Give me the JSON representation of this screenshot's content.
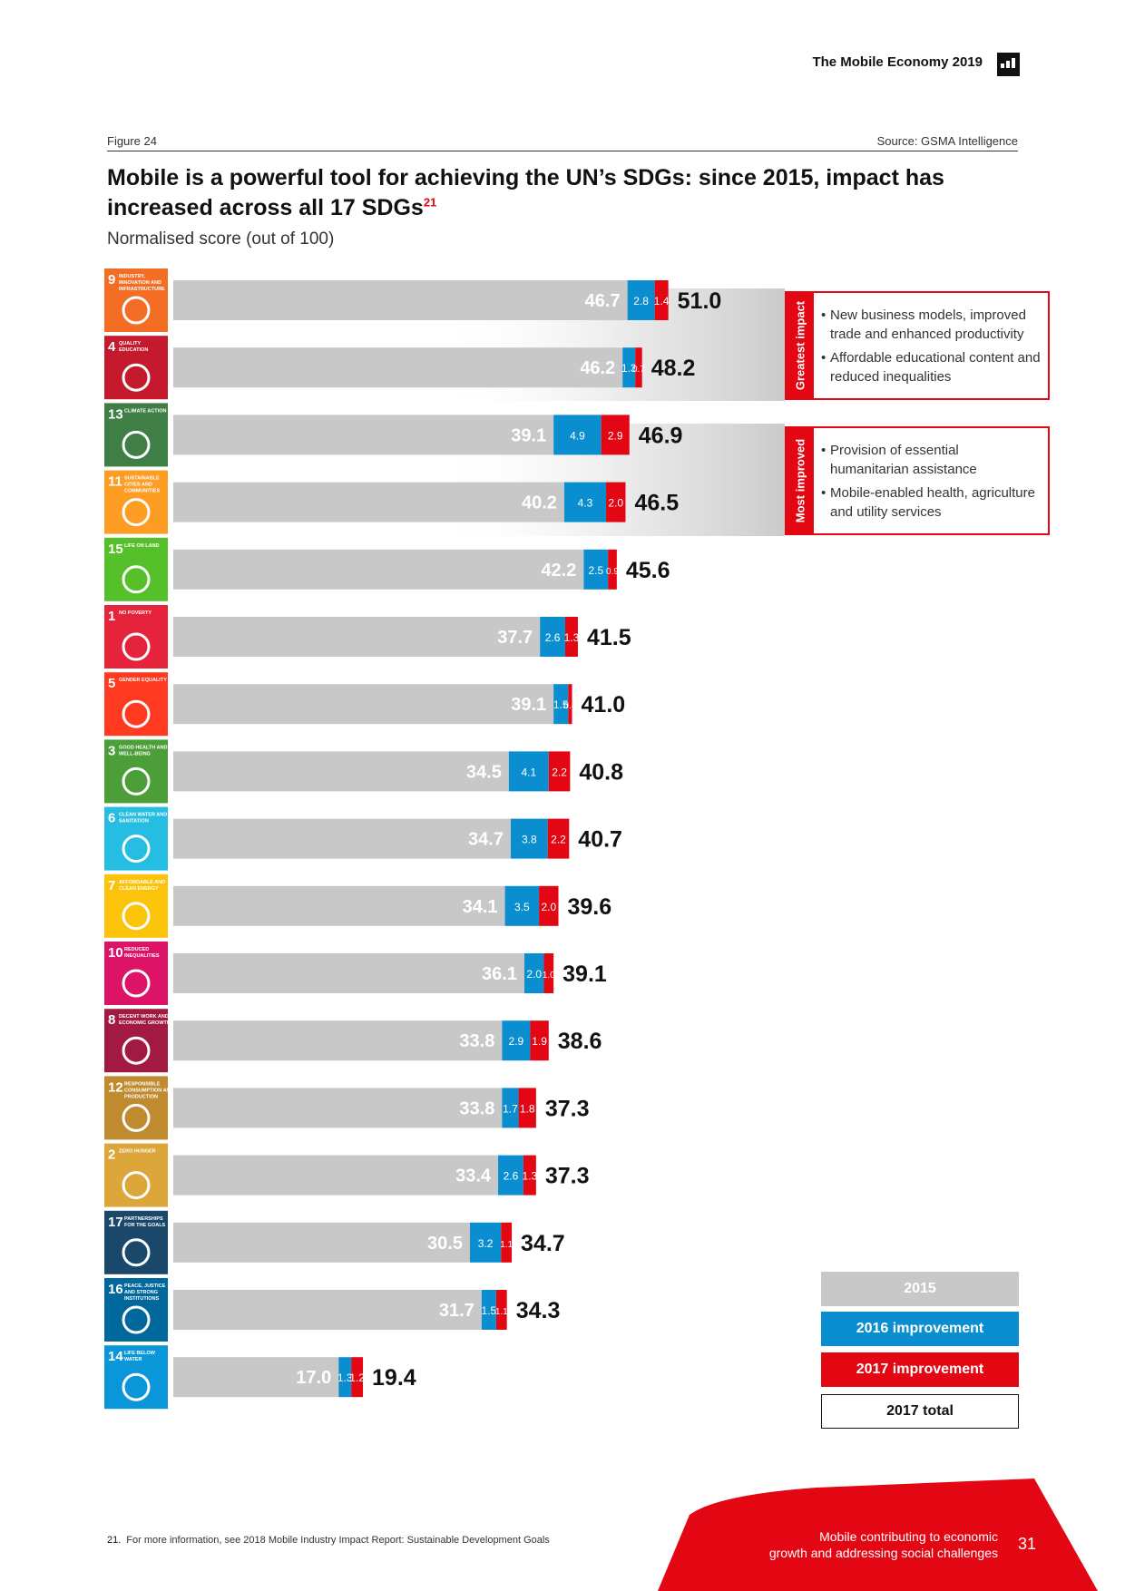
{
  "header": {
    "title": "The Mobile Economy 2019"
  },
  "figure": {
    "label": "Figure 24",
    "source": "Source: GSMA Intelligence",
    "title": "Mobile is a powerful tool for achieving the UN’s SDGs: since 2015, impact has increased across all 17 SDGs",
    "title_footnote": "21",
    "subtitle": "Normalised score (out of 100)"
  },
  "callouts": {
    "greatest": {
      "tab": "Greatest impact",
      "points": [
        "New business models, improved trade and enhanced productivity",
        "Affordable educational content and reduced inequalities"
      ]
    },
    "most_improved": {
      "tab": "Most improved",
      "points": [
        "Provision of essential humanitarian assistance",
        "Mobile-enabled health, agriculture and utility services"
      ]
    }
  },
  "legend": {
    "base": "2015",
    "imp2016": "2016 improvement",
    "imp2017": "2017 improvement",
    "total": "2017 total"
  },
  "colors": {
    "base": "#c8c8c8",
    "imp2016": "#0b8ed0",
    "imp2017": "#e30613",
    "accent": "#e30613"
  },
  "chart_data": {
    "type": "bar",
    "orientation": "horizontal",
    "stacked": true,
    "title": "Mobile is a powerful tool for achieving the UN’s SDGs: since 2015, impact has increased across all 17 SDGs",
    "xlabel": "Normalised score (out of 100)",
    "xlim": [
      0,
      100
    ],
    "categories": [
      {
        "sdg": "9",
        "label": "INDUSTRY, INNOVATION AND INFRASTRUCTURE",
        "color": "#f36d25"
      },
      {
        "sdg": "4",
        "label": "QUALITY EDUCATION",
        "color": "#c5192d"
      },
      {
        "sdg": "13",
        "label": "CLIMATE ACTION",
        "color": "#3f7e44"
      },
      {
        "sdg": "11",
        "label": "SUSTAINABLE CITIES AND COMMUNITIES",
        "color": "#fd9d24"
      },
      {
        "sdg": "15",
        "label": "LIFE ON LAND",
        "color": "#56c02b"
      },
      {
        "sdg": "1",
        "label": "NO POVERTY",
        "color": "#e5243b"
      },
      {
        "sdg": "5",
        "label": "GENDER EQUALITY",
        "color": "#ff3a21"
      },
      {
        "sdg": "3",
        "label": "GOOD HEALTH AND WELL-BEING",
        "color": "#4c9f38"
      },
      {
        "sdg": "6",
        "label": "CLEAN WATER AND SANITATION",
        "color": "#26bde2"
      },
      {
        "sdg": "7",
        "label": "AFFORDABLE AND CLEAN ENERGY",
        "color": "#fcc30b"
      },
      {
        "sdg": "10",
        "label": "REDUCED INEQUALITIES",
        "color": "#dd1367"
      },
      {
        "sdg": "8",
        "label": "DECENT WORK AND ECONOMIC GROWTH",
        "color": "#a21942"
      },
      {
        "sdg": "12",
        "label": "RESPONSIBLE CONSUMPTION AND PRODUCTION",
        "color": "#bf8b2e"
      },
      {
        "sdg": "2",
        "label": "ZERO HUNGER",
        "color": "#dda63a"
      },
      {
        "sdg": "17",
        "label": "PARTNERSHIPS FOR THE GOALS",
        "color": "#19486a"
      },
      {
        "sdg": "16",
        "label": "PEACE, JUSTICE AND STRONG INSTITUTIONS",
        "color": "#00689d"
      },
      {
        "sdg": "14",
        "label": "LIFE BELOW WATER",
        "color": "#0a97d9"
      }
    ],
    "series": [
      {
        "name": "2015",
        "values": [
          46.7,
          46.2,
          39.1,
          40.2,
          42.2,
          37.7,
          39.1,
          34.5,
          34.7,
          34.1,
          36.1,
          33.8,
          33.8,
          33.4,
          30.5,
          31.7,
          17.0
        ]
      },
      {
        "name": "2016 improvement",
        "values": [
          2.8,
          1.3,
          4.9,
          4.3,
          2.5,
          2.6,
          1.5,
          4.1,
          3.8,
          3.5,
          2.0,
          2.9,
          1.7,
          2.6,
          3.2,
          1.5,
          1.3
        ]
      },
      {
        "name": "2017 improvement",
        "values": [
          1.4,
          0.7,
          2.9,
          2.0,
          0.9,
          1.3,
          0.4,
          2.2,
          2.2,
          2.0,
          1.0,
          1.9,
          1.8,
          1.3,
          1.1,
          1.1,
          1.2
        ]
      }
    ],
    "totals": [
      51.0,
      48.2,
      46.9,
      46.5,
      45.6,
      41.5,
      41.0,
      40.8,
      40.7,
      39.6,
      39.1,
      38.6,
      37.3,
      37.3,
      34.7,
      34.3,
      19.4
    ],
    "legend": [
      "2015",
      "2016 improvement",
      "2017 improvement",
      "2017 total"
    ],
    "legend_position": "bottom-right"
  },
  "footer": {
    "footnote_number": "21.",
    "footnote_text": "For more information, see 2018 Mobile Industry Impact Report: Sustainable Development Goals",
    "section_line1": "Mobile contributing to economic",
    "section_line2": "growth and addressing social challenges",
    "page_number": "31"
  }
}
